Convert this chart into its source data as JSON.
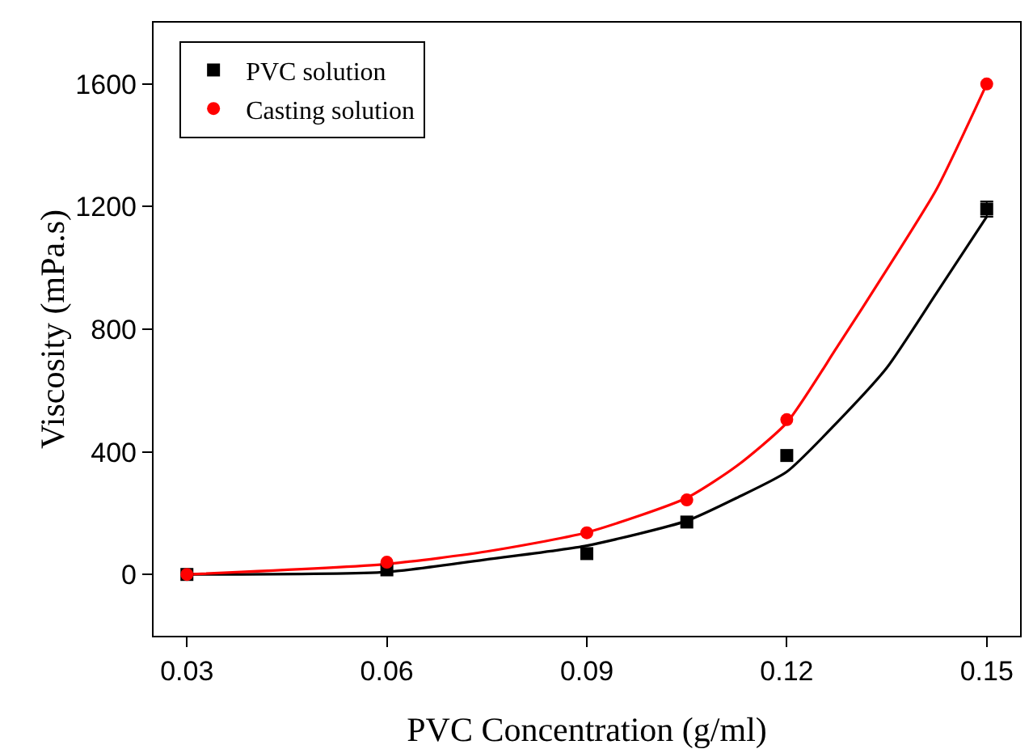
{
  "chart_data": {
    "type": "scatter",
    "xlabel": "PVC Concentration (g/ml)",
    "ylabel": "Viscosity (mPa.s)",
    "x": [
      0.03,
      0.06,
      0.09,
      0.105,
      0.12,
      0.15
    ],
    "xlim": [
      0.025,
      0.155
    ],
    "xticks": [
      0.03,
      0.06,
      0.09,
      0.12,
      0.15
    ],
    "ylim": [
      -200,
      1800
    ],
    "yticks": [
      0,
      400,
      800,
      1200,
      1600
    ],
    "grid": false,
    "legend": "top left",
    "series": [
      {
        "name": "PVC solution",
        "color": "#000000",
        "marker": "square",
        "values": [
          0,
          15,
          68,
          171,
          388,
          1192
        ],
        "errors": [
          null,
          null,
          null,
          null,
          null,
          25
        ]
      },
      {
        "name": "Casting solution",
        "color": "#ff0000",
        "marker": "circle",
        "values": [
          0,
          40,
          136,
          243,
          505,
          1600
        ]
      },
      {
        "type": "line",
        "color": "#000000",
        "x": [
          0.03,
          0.06,
          0.075,
          0.09,
          0.105,
          0.1125,
          0.12,
          0.1275,
          0.135,
          0.1425,
          0.15
        ],
        "values": [
          0,
          8,
          49,
          94,
          175,
          250,
          335,
          495,
          674,
          919,
          1167
        ]
      },
      {
        "type": "line",
        "color": "#ff0000",
        "x": [
          0.03,
          0.06,
          0.075,
          0.09,
          0.105,
          0.1125,
          0.12,
          0.1275,
          0.135,
          0.1425,
          0.15
        ],
        "values": [
          0,
          34,
          75,
          137,
          250,
          354,
          495,
          740,
          994,
          1258,
          1600
        ]
      }
    ]
  }
}
